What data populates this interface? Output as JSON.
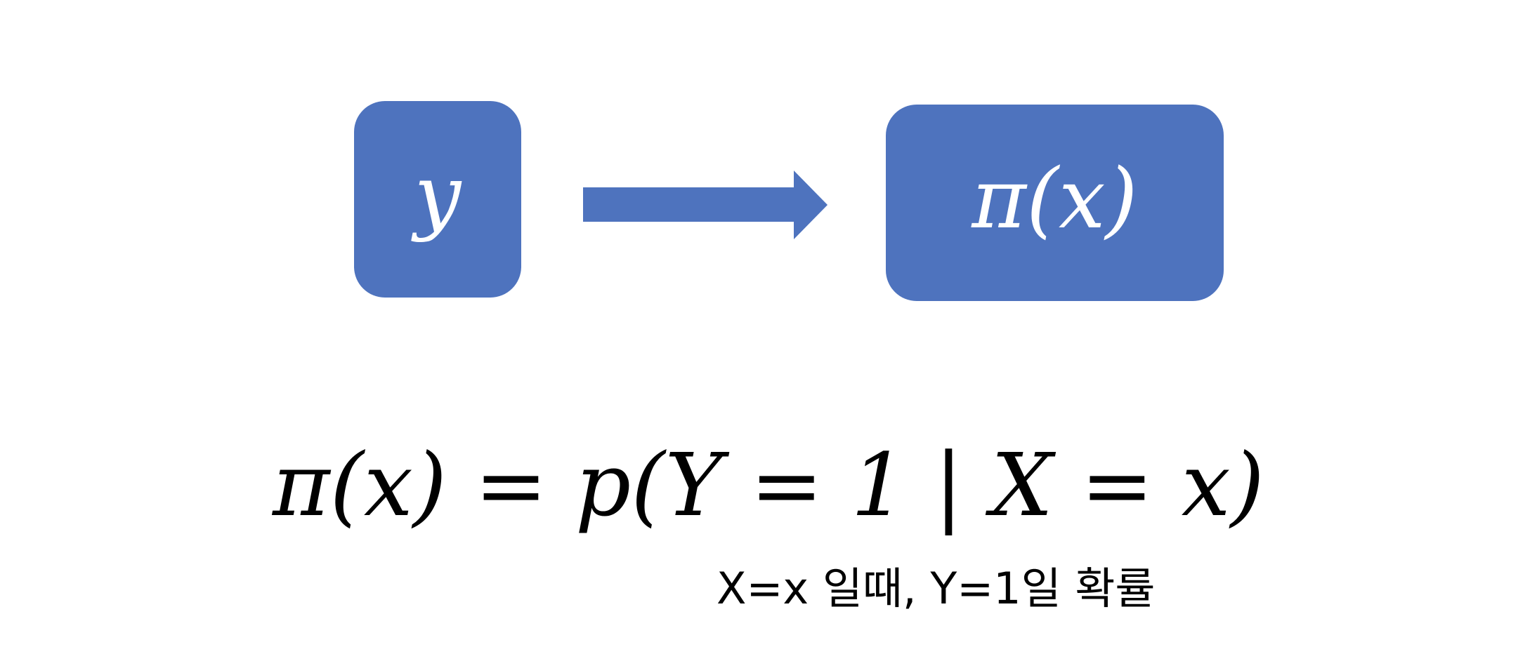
{
  "diagram": {
    "left_box": {
      "label": "y"
    },
    "right_box": {
      "label": "π(x)"
    },
    "formula": "π(x) = p(Y = 1 | X = x)",
    "caption": "X=x 일때, Y=1일 확률"
  },
  "colors": {
    "box_fill": "#4e73be",
    "box_text": "#ffffff",
    "text": "#000000",
    "background": "#ffffff"
  }
}
